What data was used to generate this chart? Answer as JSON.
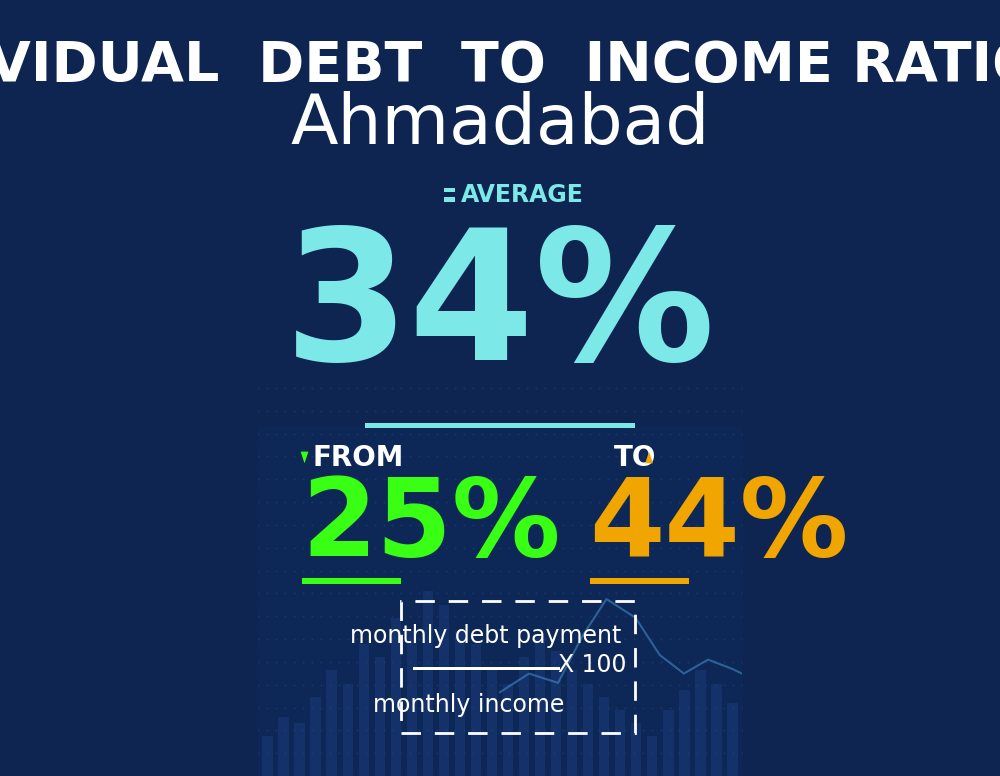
{
  "title_line1": "INDIVIDUAL  DEBT  TO  INCOME RATIO  IN",
  "title_line2": "Ahmadabad",
  "avg_label": "AVERAGE",
  "avg_value": "34%",
  "from_label": "FROM",
  "from_value": "25%",
  "to_label": "TO",
  "to_value": "44%",
  "formula_numerator": "monthly debt payment",
  "formula_denominator": "monthly income",
  "formula_multiplier": "X 100",
  "bg_color": "#0d2550",
  "avg_color": "#7de8e8",
  "avg_label_color": "#7de8e8",
  "from_color": "#39ff14",
  "to_color": "#f0a500",
  "white_color": "#ffffff",
  "separator_color": "#7de8e8",
  "title1_fontsize": 40,
  "title2_fontsize": 50,
  "avg_value_fontsize": 130,
  "avg_label_fontsize": 17,
  "from_to_label_fontsize": 20,
  "from_to_value_fontsize": 78,
  "formula_fontsize": 17
}
